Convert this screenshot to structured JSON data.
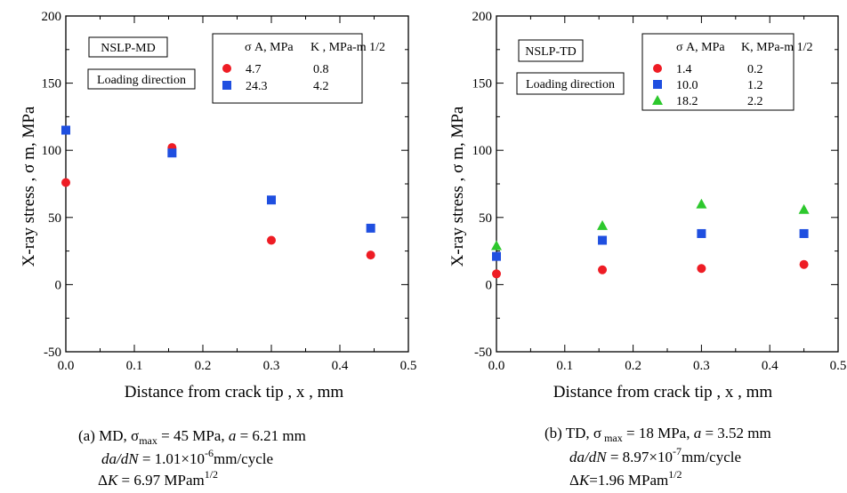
{
  "chart_data": [
    {
      "type": "scatter",
      "id": "a",
      "xlabel": "Distance from crack tip , x , mm",
      "ylabel": "X-ray stress , σ m, MPa",
      "xlim": [
        0,
        0.5
      ],
      "ylim": [
        -50,
        200
      ],
      "x_ticks": [
        "0.0",
        "0.1",
        "0.2",
        "0.3",
        "0.4",
        "0.5"
      ],
      "y_ticks": [
        "-50",
        "0",
        "50",
        "100",
        "150",
        "200"
      ],
      "grid": false,
      "label_box_1": "NSLP-MD",
      "label_box_2": "Loading direction",
      "legend_header_sigma": "σ A, MPa",
      "legend_header_k": "K , MPa-m 1/2",
      "series": [
        {
          "marker": "circle",
          "color": "#ee1c24",
          "sigma_a": "4.7",
          "k": "0.8",
          "x": [
            0.0,
            0.155,
            0.3,
            0.445
          ],
          "y": [
            76,
            102,
            33,
            22
          ]
        },
        {
          "marker": "square",
          "color": "#1f4fe0",
          "sigma_a": "24.3",
          "k": "4.2",
          "x": [
            0.0,
            0.155,
            0.3,
            0.445
          ],
          "y": [
            115,
            98,
            63,
            42
          ]
        }
      ],
      "caption": {
        "line1": {
          "prefix": "(a) MD, σ",
          "sub": "max",
          "mid": " = 45 MPa, ",
          "italic": "a",
          "suffix": " = 6.21 mm"
        },
        "line2": {
          "italic": "da/dN",
          "eq": " = 1.01×10",
          "sup": "-6",
          "suffix": "mm/cycle"
        },
        "line3": {
          "prefix": "Δ",
          "italic": "K",
          "eq": " = 6.97 MPam",
          "sup": "1/2"
        }
      }
    },
    {
      "type": "scatter",
      "id": "b",
      "xlabel": "Distance from crack tip , x , mm",
      "ylabel": "X-ray stress , σ m, MPa",
      "xlim": [
        0,
        0.5
      ],
      "ylim": [
        -50,
        200
      ],
      "x_ticks": [
        "0.0",
        "0.1",
        "0.2",
        "0.3",
        "0.4",
        "0.5"
      ],
      "y_ticks": [
        "-50",
        "0",
        "50",
        "100",
        "150",
        "200"
      ],
      "grid": false,
      "label_box_1": "NSLP-TD",
      "label_box_2": "Loading direction",
      "legend_header_sigma": "σ A, MPa",
      "legend_header_k": "K, MPa-m 1/2",
      "series": [
        {
          "marker": "circle",
          "color": "#ee1c24",
          "sigma_a": "1.4",
          "k": "0.2",
          "x": [
            0.0,
            0.155,
            0.3,
            0.45
          ],
          "y": [
            8,
            11,
            12,
            15
          ]
        },
        {
          "marker": "square",
          "color": "#1f4fe0",
          "sigma_a": "10.0",
          "k": "1.2",
          "x": [
            0.0,
            0.155,
            0.3,
            0.45
          ],
          "y": [
            21,
            33,
            38,
            38
          ]
        },
        {
          "marker": "triangle",
          "color": "#2dc82d",
          "sigma_a": "18.2",
          "k": "2.2",
          "x": [
            0.0,
            0.155,
            0.3,
            0.45
          ],
          "y": [
            29,
            44,
            60,
            56
          ]
        }
      ],
      "caption": {
        "line1": {
          "prefix": "(b) TD, σ",
          "sub": " max",
          "mid": " = 18 MPa, ",
          "italic": "a",
          "suffix": " = 3.52 mm"
        },
        "line2": {
          "italic": "da/dN",
          "eq": " = 8.97×10",
          "sup": "-7",
          "suffix": "mm/cycle"
        },
        "line3": {
          "prefix": "Δ",
          "italic": "K",
          "eq": "=1.96 MPam",
          "sup": "1/2"
        }
      }
    }
  ]
}
